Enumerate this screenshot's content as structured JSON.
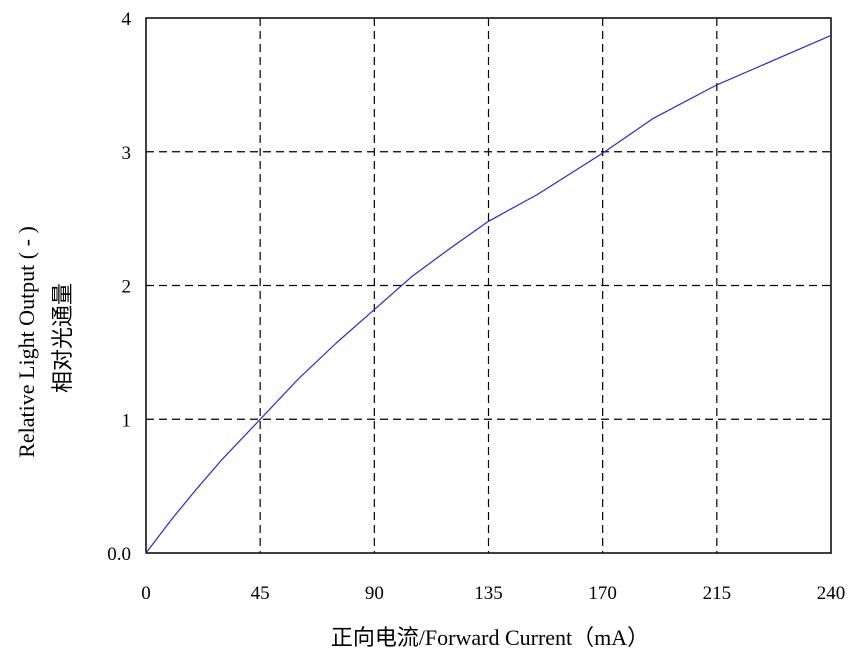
{
  "chart_data": {
    "type": "line",
    "xlabel": "正向电流/Forward Current（mA）",
    "ylabel_en": "Relative Light Output ( - )",
    "ylabel_cn": "相对光通量",
    "x_ticks": [
      {
        "value": 0,
        "label": "0"
      },
      {
        "value": 45,
        "label": "45"
      },
      {
        "value": 90,
        "label": "90"
      },
      {
        "value": 135,
        "label": "135"
      },
      {
        "value": 170,
        "label": "170"
      },
      {
        "value": 215,
        "label": "215"
      },
      {
        "value": 240,
        "label": "240"
      }
    ],
    "y_ticks": [
      {
        "value": 0,
        "label": "0.0"
      },
      {
        "value": 1,
        "label": "1"
      },
      {
        "value": 2,
        "label": "2"
      },
      {
        "value": 3,
        "label": "3"
      },
      {
        "value": 4,
        "label": "4"
      }
    ],
    "xlim": [
      0,
      240
    ],
    "ylim": [
      0,
      4
    ],
    "grid": "dashed",
    "series": [
      {
        "color": "#2b2bc8",
        "x": [
          0,
          10,
          20,
          30,
          45,
          60,
          75,
          90,
          105,
          120,
          135,
          150,
          170,
          190,
          215,
          240
        ],
        "y": [
          0,
          0.25,
          0.48,
          0.7,
          1.0,
          1.3,
          1.57,
          1.82,
          2.07,
          2.28,
          2.48,
          2.68,
          2.99,
          3.25,
          3.5,
          3.87
        ]
      }
    ]
  }
}
